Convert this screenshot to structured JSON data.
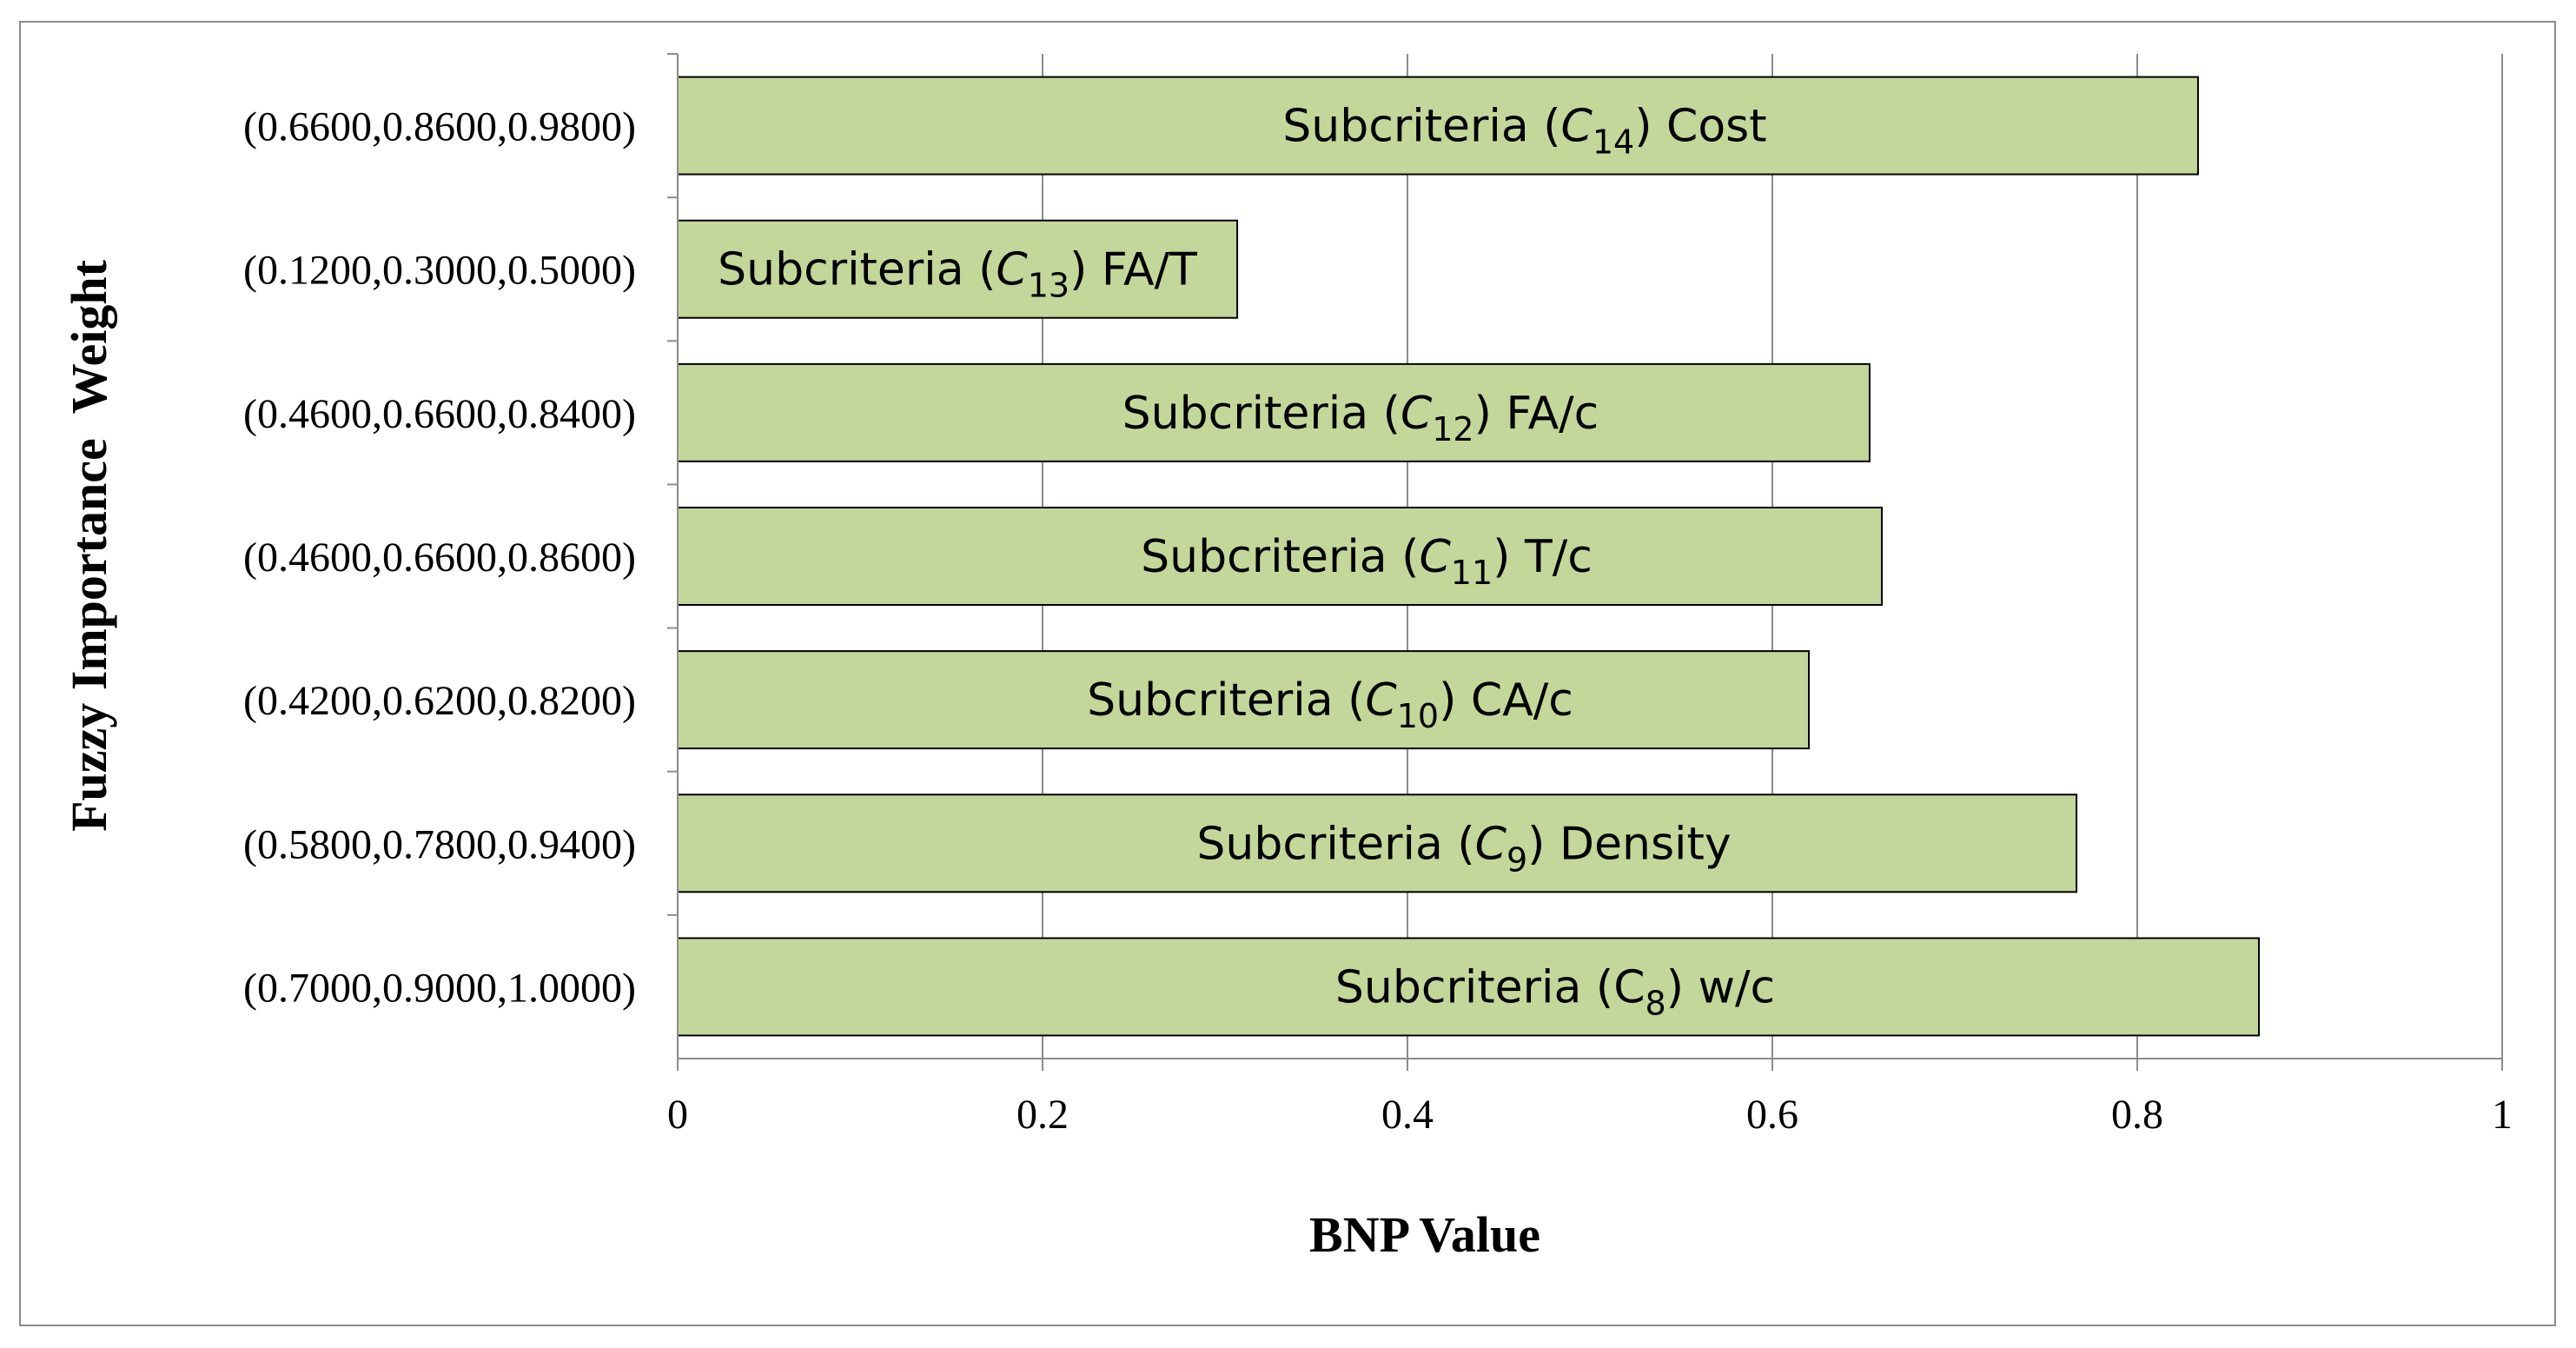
{
  "chart_data": {
    "type": "bar",
    "orientation": "horizontal",
    "title": "",
    "xlabel": "BNP Value",
    "ylabel": "Fuzzy Importance  Weight",
    "xlim": [
      0,
      1
    ],
    "xticks": [
      0,
      0.2,
      0.4,
      0.6,
      0.8,
      1
    ],
    "xtick_labels": [
      "0",
      "0.2",
      "0.4",
      "0.6",
      "0.8",
      "1"
    ],
    "grid": "vertical",
    "bar_color": "#c4d79b",
    "bar_edge_color": "#000000",
    "categories": [
      "(0.6600,0.8600,0.9800)",
      "(0.1200,0.3000,0.5000)",
      "(0.4600,0.6600,0.8400)",
      "(0.4600,0.6600,0.8600)",
      "(0.4200,0.6200,0.8200)",
      "(0.5800,0.7800,0.9400)",
      "(0.7000,0.9000,1.0000)"
    ],
    "values": [
      0.8333,
      0.3067,
      0.6533,
      0.66,
      0.62,
      0.7667,
      0.8667
    ],
    "data_labels": [
      {
        "prefix": "Subcriteria (",
        "sym": "C",
        "sym_italic": true,
        "sub": "14",
        "suffix": ") Cost"
      },
      {
        "prefix": "Subcriteria (",
        "sym": "C",
        "sym_italic": true,
        "sub": "13",
        "suffix": ") FA/T"
      },
      {
        "prefix": "Subcriteria (",
        "sym": "C",
        "sym_italic": true,
        "sub": "12",
        "suffix": ") FA/c"
      },
      {
        "prefix": "Subcriteria (",
        "sym": "C",
        "sym_italic": true,
        "sub": "11",
        "suffix": ") T/c"
      },
      {
        "prefix": "Subcriteria (",
        "sym": "C",
        "sym_italic": true,
        "sub": "10",
        "suffix": ") CA/c"
      },
      {
        "prefix": "Subcriteria (",
        "sym": "C",
        "sym_italic": true,
        "sub": "9",
        "suffix": ") Density"
      },
      {
        "prefix": "Subcriteria (",
        "sym": "C",
        "sym_italic": false,
        "sub": "8",
        "suffix": ") w/c"
      }
    ]
  }
}
